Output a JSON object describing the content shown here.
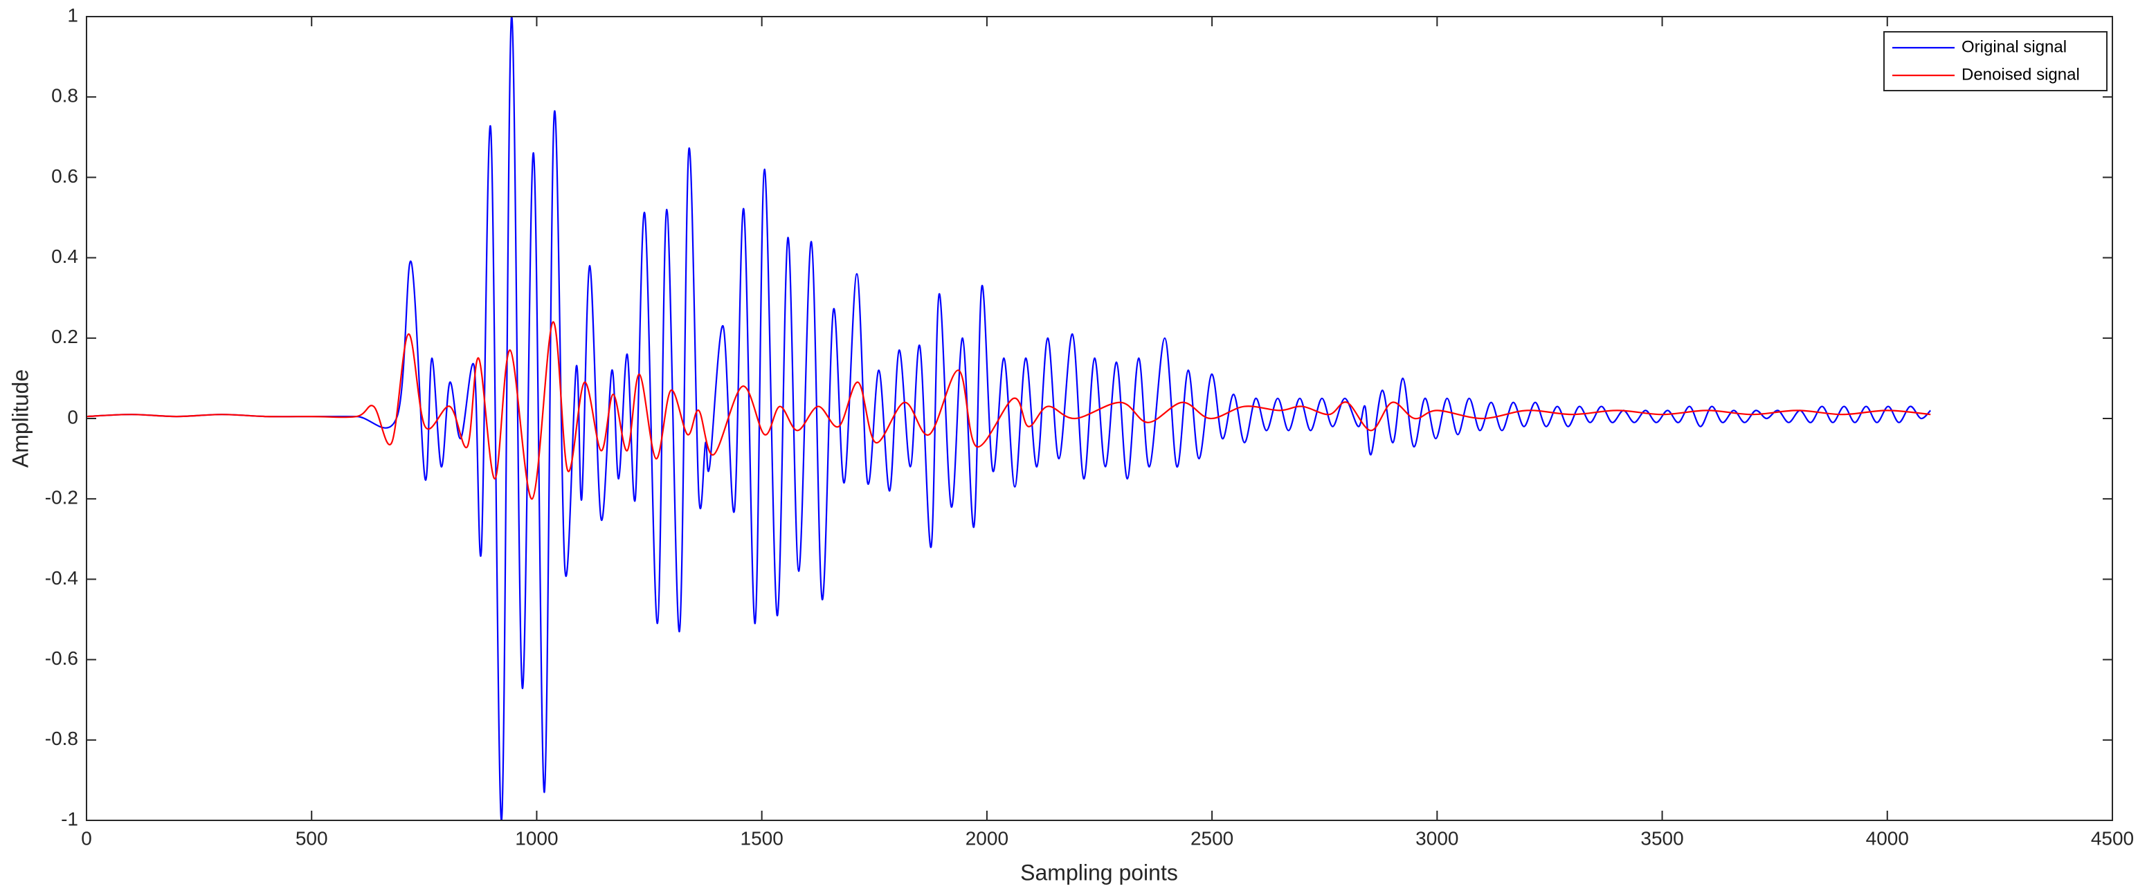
{
  "chart_data": {
    "type": "line",
    "xlabel": "Sampling points",
    "ylabel": "Amplitude",
    "xlim": [
      0,
      4500
    ],
    "xticks": [
      0,
      500,
      1000,
      1500,
      2000,
      2500,
      3000,
      3500,
      4000,
      4500
    ],
    "ylim": [
      -1,
      1
    ],
    "yticks": [
      -1,
      -0.8,
      -0.6,
      -0.4,
      -0.2,
      0,
      0.2,
      0.4,
      0.6,
      0.8,
      1
    ],
    "grid": false,
    "legend": "top-right",
    "series": [
      {
        "name": "Original signal",
        "color": "#0000ff",
        "x": [
          0,
          100,
          200,
          300,
          400,
          500,
          600,
          690,
          721,
          752,
          767,
          788,
          807,
          831,
          861,
          877,
          898,
          922,
          944,
          968,
          993,
          1017,
          1039,
          1063,
          1088,
          1100,
          1118,
          1143,
          1167,
          1182,
          1201,
          1219,
          1240,
          1268,
          1289,
          1317,
          1338,
          1360,
          1375,
          1384,
          1414,
          1439,
          1460,
          1485,
          1506,
          1534,
          1558,
          1582,
          1610,
          1634,
          1659,
          1683,
          1711,
          1735,
          1760,
          1784,
          1805,
          1830,
          1851,
          1876,
          1894,
          1921,
          1946,
          1971,
          1989,
          2013,
          2038,
          2062,
          2086,
          2111,
          2135,
          2160,
          2190,
          2215,
          2239,
          2263,
          2288,
          2312,
          2337,
          2361,
          2395,
          2422,
          2447,
          2471,
          2499,
          2523,
          2548,
          2572,
          2597,
          2621,
          2646,
          2670,
          2695,
          2719,
          2744,
          2768,
          2795,
          2825,
          2840,
          2853,
          2878,
          2902,
          2924,
          2948,
          2973,
          2997,
          3022,
          3046,
          3071,
          3095,
          3120,
          3144,
          3169,
          3193,
          3218,
          3242,
          3267,
          3291,
          3316,
          3340,
          3365,
          3389,
          3414,
          3438,
          3463,
          3487,
          3512,
          3536,
          3561,
          3585,
          3610,
          3634,
          3659,
          3683,
          3708,
          3732,
          3757,
          3781,
          3806,
          3830,
          3855,
          3879,
          3904,
          3928,
          3953,
          3977,
          4002,
          4026,
          4051,
          4075,
          4096
        ],
        "values": [
          0.005,
          0.01,
          0.005,
          0.01,
          0.005,
          0.005,
          0.005,
          0.005,
          0.39,
          -0.15,
          0.15,
          -0.12,
          0.09,
          -0.05,
          0.13,
          -0.33,
          0.72,
          -1,
          1,
          -0.67,
          0.66,
          -0.93,
          0.76,
          -0.38,
          0.13,
          -0.2,
          0.38,
          -0.25,
          0.12,
          -0.15,
          0.16,
          -0.2,
          0.51,
          -0.51,
          0.52,
          -0.53,
          0.67,
          -0.19,
          -0.06,
          -0.12,
          0.23,
          -0.23,
          0.52,
          -0.51,
          0.62,
          -0.49,
          0.45,
          -0.38,
          0.44,
          -0.45,
          0.27,
          -0.16,
          0.36,
          -0.16,
          0.12,
          -0.18,
          0.17,
          -0.12,
          0.18,
          -0.32,
          0.31,
          -0.22,
          0.2,
          -0.27,
          0.33,
          -0.13,
          0.15,
          -0.17,
          0.15,
          -0.12,
          0.2,
          -0.1,
          0.21,
          -0.15,
          0.15,
          -0.12,
          0.14,
          -0.15,
          0.15,
          -0.12,
          0.2,
          -0.12,
          0.12,
          -0.1,
          0.11,
          -0.05,
          0.06,
          -0.06,
          0.05,
          -0.03,
          0.05,
          -0.03,
          0.05,
          -0.03,
          0.05,
          -0.02,
          0.05,
          -0.02,
          0.03,
          -0.09,
          0.07,
          -0.06,
          0.1,
          -0.07,
          0.05,
          -0.05,
          0.05,
          -0.04,
          0.05,
          -0.03,
          0.04,
          -0.03,
          0.04,
          -0.02,
          0.04,
          -0.02,
          0.03,
          -0.02,
          0.03,
          -0.01,
          0.03,
          -0.01,
          0.02,
          -0.01,
          0.02,
          -0.01,
          0.02,
          -0.01,
          0.03,
          -0.02,
          0.03,
          -0.01,
          0.02,
          -0.01,
          0.02,
          0,
          0.02,
          -0.01,
          0.02,
          -0.01,
          0.03,
          -0.01,
          0.03,
          -0.01,
          0.03,
          -0.01,
          0.03,
          -0.01,
          0.03,
          0,
          0.02
        ]
      },
      {
        "name": "Denoised signal",
        "color": "#ff0000",
        "x": [
          0,
          100,
          200,
          300,
          400,
          500,
          600,
          638,
          678,
          715,
          752,
          807,
          846,
          871,
          907,
          941,
          990,
          1036,
          1069,
          1106,
          1143,
          1170,
          1201,
          1228,
          1265,
          1298,
          1335,
          1360,
          1393,
          1457,
          1506,
          1540,
          1579,
          1625,
          1671,
          1714,
          1753,
          1817,
          1872,
          1937,
          1977,
          2059,
          2092,
          2135,
          2196,
          2297,
          2358,
          2434,
          2496,
          2572,
          2650,
          2700,
          2760,
          2800,
          2853,
          2900,
          2950,
          3000,
          3100,
          3200,
          3300,
          3400,
          3500,
          3600,
          3700,
          3800,
          3900,
          4000,
          4096
        ],
        "values": [
          0.005,
          0.01,
          0.005,
          0.01,
          0.005,
          0.005,
          0.005,
          0.03,
          -0.06,
          0.21,
          -0.02,
          0.03,
          -0.07,
          0.15,
          -0.15,
          0.17,
          -0.2,
          0.24,
          -0.13,
          0.09,
          -0.08,
          0.06,
          -0.08,
          0.11,
          -0.1,
          0.07,
          -0.04,
          0.02,
          -0.09,
          0.08,
          -0.04,
          0.03,
          -0.03,
          0.03,
          -0.02,
          0.09,
          -0.06,
          0.04,
          -0.04,
          0.12,
          -0.07,
          0.05,
          -0.02,
          0.03,
          0,
          0.04,
          -0.01,
          0.04,
          0,
          0.03,
          0.02,
          0.03,
          0.01,
          0.04,
          -0.03,
          0.04,
          0,
          0.02,
          0,
          0.02,
          0.01,
          0.02,
          0.01,
          0.02,
          0.01,
          0.02,
          0.01,
          0.02,
          0.01
        ]
      }
    ]
  }
}
